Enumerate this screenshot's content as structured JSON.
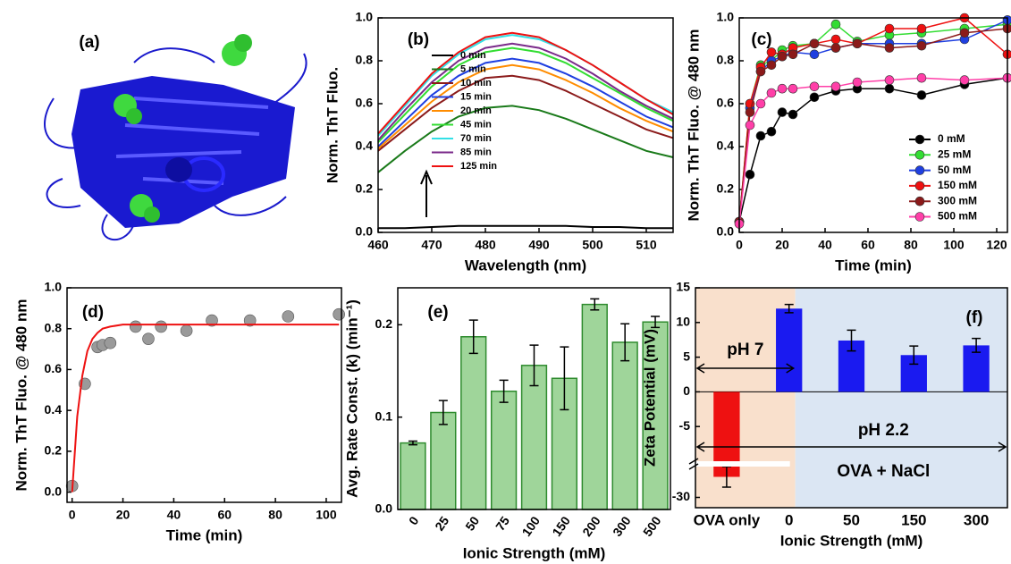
{
  "chart_data": [
    {
      "type": "image",
      "title": "(a)"
    },
    {
      "type": "line",
      "title": "(b)",
      "xlabel": "Wavelength (nm)",
      "ylabel": "Norm. ThT Fluo.",
      "x": [
        460,
        465,
        470,
        475,
        480,
        485,
        490,
        495,
        500,
        505,
        510,
        515
      ],
      "xlim": [
        460,
        515
      ],
      "xticks": [
        460,
        470,
        480,
        490,
        500,
        510
      ],
      "ylim": [
        0,
        1
      ],
      "yticks": [
        {
          "value": 0,
          "label": "0.0"
        },
        0.2,
        0.4,
        0.6,
        0.8,
        {
          "value": 1,
          "label": "1.0"
        }
      ],
      "legend": "upper-left",
      "series": [
        {
          "name": "0 min",
          "color": "#000000",
          "values": [
            0.02,
            0.02,
            0.025,
            0.03,
            0.03,
            0.03,
            0.03,
            0.03,
            0.025,
            0.025,
            0.02,
            0.02
          ]
        },
        {
          "name": "5 min",
          "color": "#1a7a1a",
          "values": [
            0.28,
            0.38,
            0.47,
            0.54,
            0.58,
            0.59,
            0.57,
            0.53,
            0.48,
            0.43,
            0.38,
            0.35
          ]
        },
        {
          "name": "10 min",
          "color": "#8b1a1a",
          "values": [
            0.38,
            0.48,
            0.58,
            0.66,
            0.72,
            0.73,
            0.71,
            0.66,
            0.6,
            0.54,
            0.48,
            0.44
          ]
        },
        {
          "name": "15 min",
          "color": "#1f3fe0",
          "values": [
            0.4,
            0.52,
            0.64,
            0.73,
            0.79,
            0.81,
            0.79,
            0.74,
            0.68,
            0.61,
            0.54,
            0.49
          ]
        },
        {
          "name": "20 min",
          "color": "#ff8c00",
          "values": [
            0.39,
            0.5,
            0.61,
            0.7,
            0.76,
            0.78,
            0.76,
            0.71,
            0.65,
            0.58,
            0.52,
            0.47
          ]
        },
        {
          "name": "45 min",
          "color": "#33dd33",
          "values": [
            0.42,
            0.55,
            0.68,
            0.78,
            0.84,
            0.86,
            0.84,
            0.79,
            0.72,
            0.65,
            0.58,
            0.52
          ]
        },
        {
          "name": "70 min",
          "color": "#33e0e6",
          "values": [
            0.45,
            0.59,
            0.73,
            0.83,
            0.9,
            0.92,
            0.9,
            0.85,
            0.78,
            0.7,
            0.62,
            0.56
          ]
        },
        {
          "name": "85 min",
          "color": "#7a2a8a",
          "values": [
            0.43,
            0.57,
            0.7,
            0.8,
            0.86,
            0.88,
            0.86,
            0.81,
            0.74,
            0.66,
            0.59,
            0.53
          ]
        },
        {
          "name": "125 min",
          "color": "#ee1111",
          "values": [
            0.46,
            0.6,
            0.74,
            0.84,
            0.91,
            0.93,
            0.91,
            0.85,
            0.78,
            0.7,
            0.62,
            0.55
          ]
        }
      ]
    },
    {
      "type": "line",
      "title": "(c)",
      "xlabel": "Time (min)",
      "ylabel": "Norm. ThT Fluo. @ 480 nm",
      "markers": true,
      "x": [
        0,
        5,
        10,
        15,
        20,
        25,
        35,
        45,
        55,
        70,
        85,
        105,
        125
      ],
      "xlim": [
        0,
        125
      ],
      "xticks": [
        0,
        20,
        40,
        60,
        80,
        100,
        120
      ],
      "ylim": [
        0,
        1
      ],
      "yticks": [
        {
          "value": 0,
          "label": "0.0"
        },
        0.2,
        0.4,
        0.6,
        0.8,
        {
          "value": 1,
          "label": "1.0"
        }
      ],
      "legend": "lower-right",
      "series": [
        {
          "name": "0 mM",
          "color": "#000000",
          "values": [
            0.05,
            0.27,
            0.45,
            0.47,
            0.56,
            0.55,
            0.63,
            0.66,
            0.67,
            0.67,
            0.64,
            0.69,
            0.72
          ]
        },
        {
          "name": "25 mM",
          "color": "#33dd33",
          "values": [
            0.05,
            0.6,
            0.78,
            0.8,
            0.85,
            0.87,
            0.88,
            0.97,
            0.89,
            0.92,
            0.93,
            0.95,
            0.97
          ]
        },
        {
          "name": "50 mM",
          "color": "#1f3fe0",
          "values": [
            0.05,
            0.58,
            0.75,
            0.8,
            0.82,
            0.84,
            0.83,
            0.86,
            0.88,
            0.88,
            0.88,
            0.9,
            0.99
          ]
        },
        {
          "name": "150 mM",
          "color": "#ee1111",
          "values": [
            0.05,
            0.6,
            0.77,
            0.84,
            0.83,
            0.86,
            0.88,
            0.9,
            0.88,
            0.95,
            0.95,
            1.0,
            0.83
          ]
        },
        {
          "name": "300 mM",
          "color": "#8b1a1a",
          "values": [
            0.05,
            0.56,
            0.75,
            0.78,
            0.82,
            0.83,
            0.88,
            0.86,
            0.88,
            0.86,
            0.87,
            0.93,
            0.95
          ]
        },
        {
          "name": "500 mM",
          "color": "#ff3fa8",
          "values": [
            0.04,
            0.5,
            0.6,
            0.65,
            0.67,
            0.67,
            0.68,
            0.68,
            0.7,
            0.71,
            0.72,
            0.71,
            0.72
          ]
        }
      ]
    },
    {
      "type": "scatter",
      "title": "(d)",
      "xlabel": "Time (min)",
      "ylabel": "Norm. ThT Fluo. @ 480 nm",
      "color": "#9a9a9a",
      "x": [
        0,
        5,
        10,
        12,
        15,
        25,
        30,
        35,
        45,
        55,
        70,
        85,
        105
      ],
      "values": [
        0.03,
        0.53,
        0.71,
        0.72,
        0.73,
        0.81,
        0.75,
        0.81,
        0.79,
        0.84,
        0.84,
        0.86,
        0.87
      ],
      "fit": {
        "color": "#ee1111",
        "x": [
          0,
          2,
          4,
          6,
          8,
          10,
          12,
          15,
          20,
          30,
          50,
          80,
          105
        ],
        "values": [
          0,
          0.37,
          0.57,
          0.69,
          0.75,
          0.78,
          0.8,
          0.81,
          0.82,
          0.82,
          0.82,
          0.82,
          0.82
        ]
      },
      "xlim": [
        -2,
        106
      ],
      "xticks": [
        0,
        20,
        40,
        60,
        80,
        100
      ],
      "ylim": [
        -0.05,
        1
      ],
      "yticks": [
        {
          "value": 0,
          "label": "0.0"
        },
        0.2,
        0.4,
        0.6,
        0.8,
        {
          "value": 1,
          "label": "1.0"
        }
      ]
    },
    {
      "type": "bar",
      "title": "(e)",
      "xlabel": "Ionic Strength (mM)",
      "ylabel": "Avg. Rate Const. (k) (min⁻¹)",
      "color": "#9fd59a",
      "edge": "#2e8b2e",
      "rotate_labels": true,
      "categories": [
        "0",
        "25",
        "50",
        "75",
        "100",
        "150",
        "200",
        "300",
        "500"
      ],
      "values": [
        0.072,
        0.105,
        0.187,
        0.128,
        0.156,
        0.142,
        0.222,
        0.181,
        0.203
      ],
      "errors": [
        0.002,
        0.013,
        0.018,
        0.012,
        0.022,
        0.034,
        0.006,
        0.02,
        0.006
      ],
      "ylim": [
        0,
        0.24
      ],
      "yticks": [
        {
          "value": 0,
          "label": "0.0"
        },
        0.1,
        0.2
      ]
    },
    {
      "type": "bar",
      "title": "(f)",
      "xlabel": "Ionic Strength (mM)",
      "ylabel": "Zeta Potential (mV)",
      "colors": [
        "#ee1111",
        "#1a1af0",
        "#1a1af0",
        "#1a1af0",
        "#1a1af0"
      ],
      "categories": [
        "OVA only",
        "0",
        "50",
        "150",
        "300"
      ],
      "values": [
        -24,
        12,
        7.4,
        5.3,
        6.7
      ],
      "errors": [
        3,
        0.6,
        1.5,
        1.3,
        1
      ],
      "ylim": [
        -33,
        15
      ],
      "ybreak": [
        -10,
        -21
      ],
      "yticks": [
        15,
        10,
        5,
        0,
        -5,
        -30
      ],
      "annotations": [
        "pH 7",
        "pH 2.2",
        "OVA + NaCl"
      ]
    }
  ]
}
